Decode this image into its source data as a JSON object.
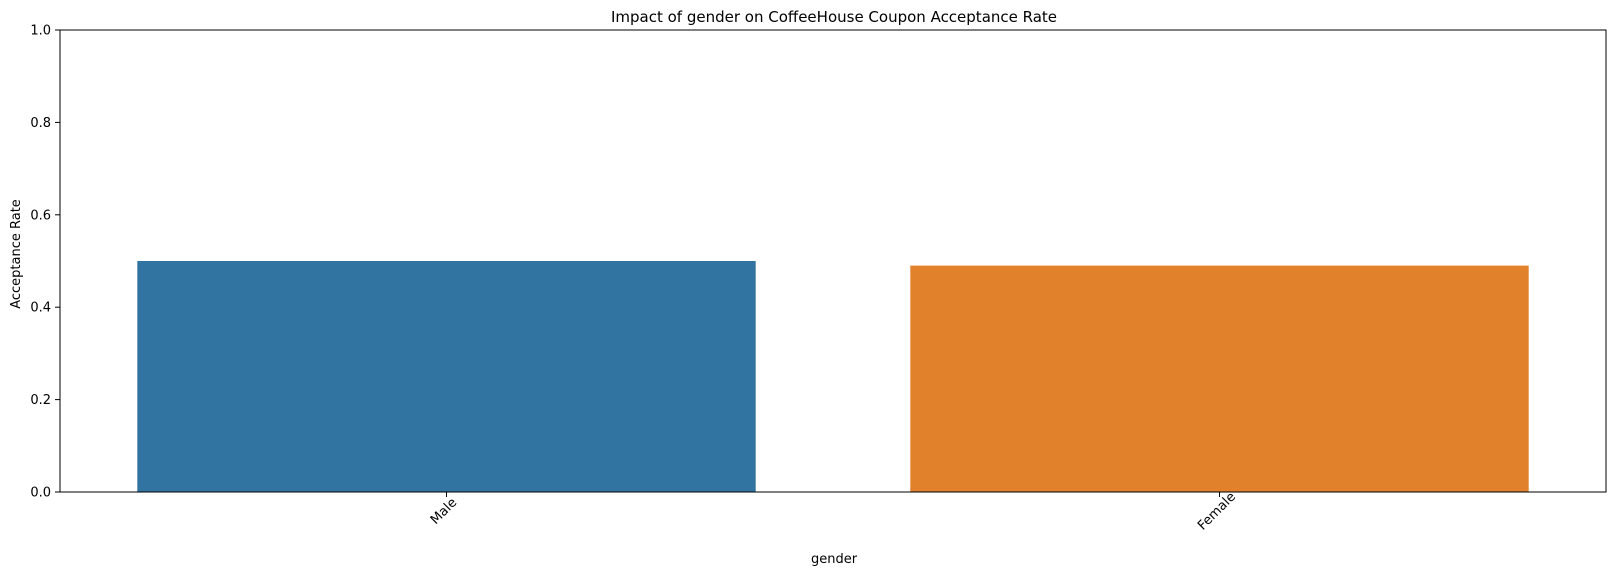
{
  "chart_data": {
    "type": "bar",
    "title": "Impact of gender on CoffeeHouse Coupon Acceptance Rate",
    "xlabel": "gender",
    "ylabel": "Acceptance Rate",
    "categories": [
      "Male",
      "Female"
    ],
    "values": [
      0.5,
      0.49
    ],
    "colors": [
      "#3274a1",
      "#e1812c"
    ],
    "ylim": [
      0,
      1
    ],
    "yticks": [
      "0.0",
      "0.2",
      "0.4",
      "0.6",
      "0.8",
      "1.0"
    ],
    "grid": false,
    "legend": false
  }
}
